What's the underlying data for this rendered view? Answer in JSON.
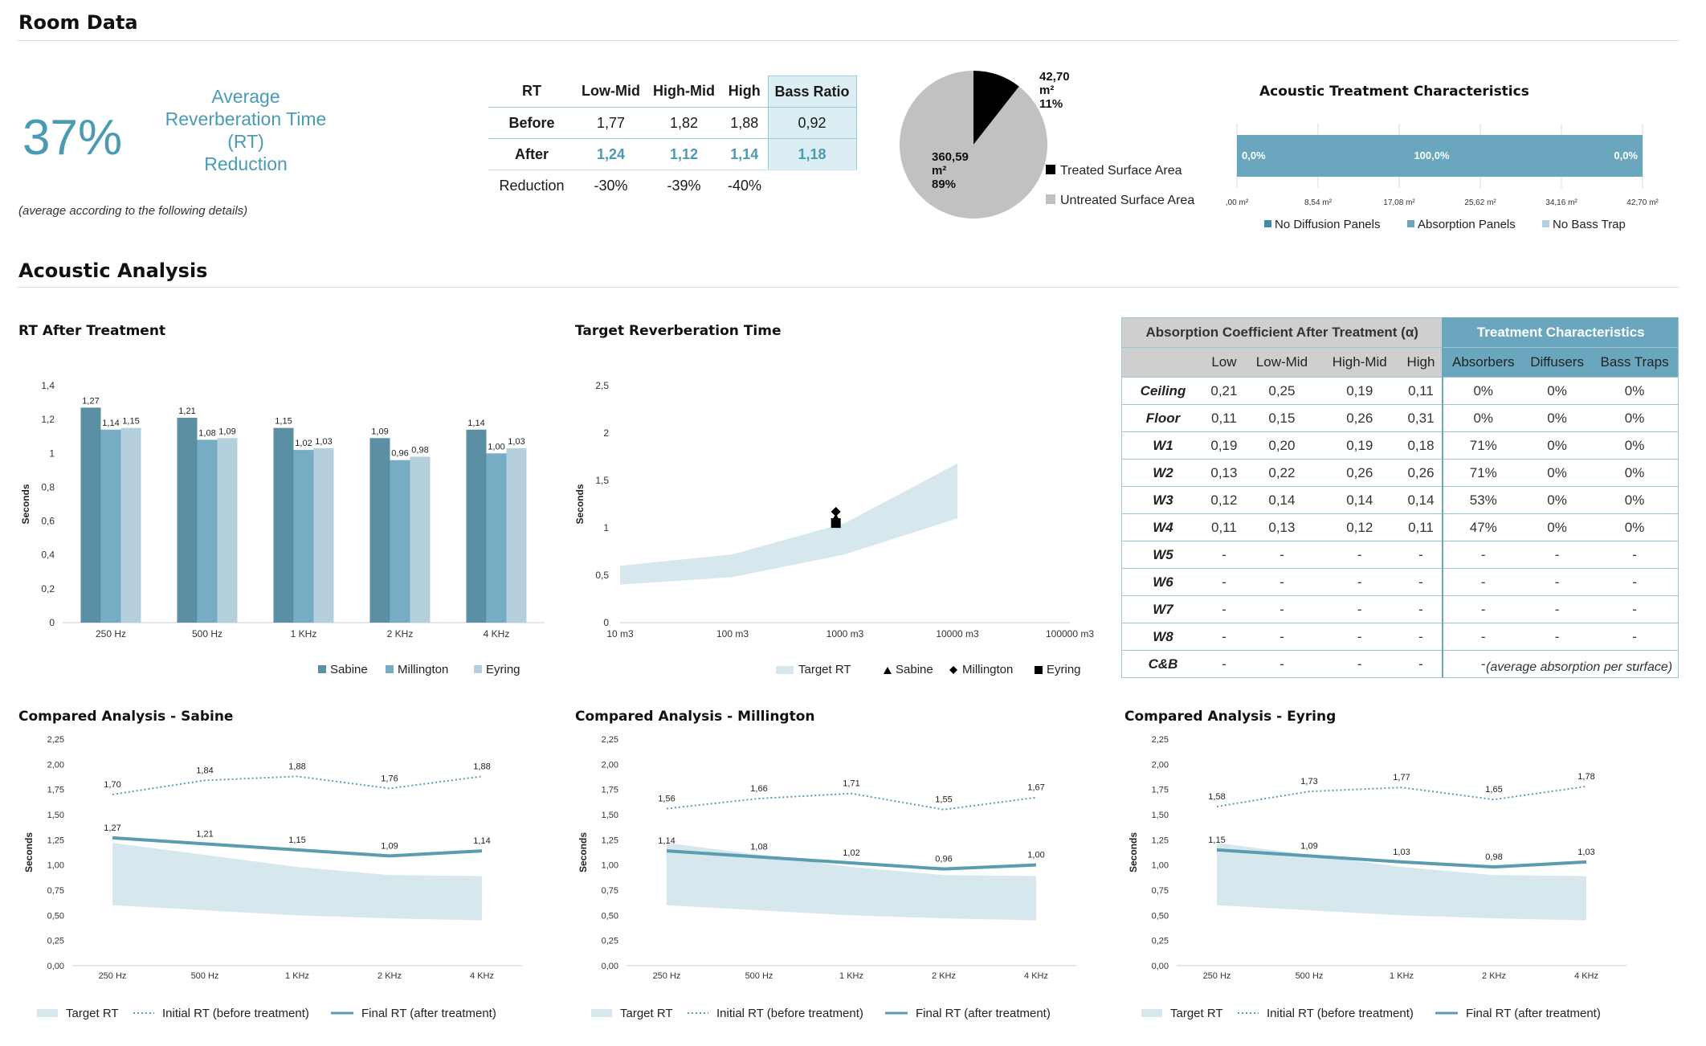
{
  "room_data": {
    "title": "Room Data",
    "percent": "37%",
    "percent_label_lines": [
      "Average",
      "Reverberation Time",
      "(RT)",
      "Reduction"
    ],
    "note": "(average according to the following details)"
  },
  "rt_table": {
    "headers": [
      "RT",
      "Low-Mid",
      "High-Mid",
      "High",
      "Bass Ratio"
    ],
    "rows": [
      {
        "label": "Before",
        "values": [
          "1,77",
          "1,82",
          "1,88",
          "0,92"
        ]
      },
      {
        "label": "After",
        "values": [
          "1,24",
          "1,12",
          "1,14",
          "1,18"
        ]
      },
      {
        "label": "Reduction",
        "values": [
          "-30%",
          "-39%",
          "-40%",
          ""
        ]
      }
    ]
  },
  "acoustic_analysis": {
    "title": "Acoustic Analysis"
  },
  "absorption_table": {
    "group_header_left": "Absorption Coefficient After Treatment (α)",
    "group_header_right": "Treatment Characteristics",
    "columns": [
      "Low",
      "Low-Mid",
      "High-Mid",
      "High",
      "Absorbers",
      "Diffusers",
      "Bass Traps"
    ],
    "rows": [
      {
        "label": "Ceiling",
        "values": [
          "0,21",
          "0,25",
          "0,19",
          "0,11",
          "0%",
          "0%",
          "0%"
        ]
      },
      {
        "label": "Floor",
        "values": [
          "0,11",
          "0,15",
          "0,26",
          "0,31",
          "0%",
          "0%",
          "0%"
        ]
      },
      {
        "label": "W1",
        "values": [
          "0,19",
          "0,20",
          "0,19",
          "0,18",
          "71%",
          "0%",
          "0%"
        ]
      },
      {
        "label": "W2",
        "values": [
          "0,13",
          "0,22",
          "0,26",
          "0,26",
          "71%",
          "0%",
          "0%"
        ]
      },
      {
        "label": "W3",
        "values": [
          "0,12",
          "0,14",
          "0,14",
          "0,14",
          "53%",
          "0%",
          "0%"
        ]
      },
      {
        "label": "W4",
        "values": [
          "0,11",
          "0,13",
          "0,12",
          "0,11",
          "47%",
          "0%",
          "0%"
        ]
      },
      {
        "label": "W5",
        "values": [
          "-",
          "-",
          "-",
          "-",
          "-",
          "-",
          "-"
        ]
      },
      {
        "label": "W6",
        "values": [
          "-",
          "-",
          "-",
          "-",
          "-",
          "-",
          "-"
        ]
      },
      {
        "label": "W7",
        "values": [
          "-",
          "-",
          "-",
          "-",
          "-",
          "-",
          "-"
        ]
      },
      {
        "label": "W8",
        "values": [
          "-",
          "-",
          "-",
          "-",
          "-",
          "-",
          "-"
        ]
      },
      {
        "label": "C&B",
        "values": [
          "-",
          "-",
          "-",
          "-",
          "-",
          "-",
          "-"
        ]
      }
    ],
    "note": "(average absorption per surface)"
  },
  "colors": {
    "sabine": "#5b8fa3",
    "millington": "#77adc4",
    "eyring": "#b3d0dc",
    "target_band": "#d6e8ee",
    "final_line": "#5c9cb1",
    "pie_untreated": "#c1c1c1",
    "pie_treated": "#000000",
    "bar_fill": "#6aa7bf"
  },
  "chart_data": [
    {
      "id": "pie",
      "type": "pie",
      "slices": [
        {
          "name": "Treated Surface Area",
          "value": 42.7,
          "label_lines": [
            "42,70",
            "m²",
            "11%"
          ],
          "color": "#000000"
        },
        {
          "name": "Untreated Surface Area",
          "value": 360.59,
          "label_lines": [
            "360,59",
            "m²",
            "89%"
          ],
          "color": "#c1c1c1"
        }
      ],
      "legend": [
        "Treated Surface Area",
        "Untreated Surface Area"
      ]
    },
    {
      "id": "treatment",
      "type": "bar",
      "title": "Acoustic Treatment Characteristics",
      "orientation": "horizontal-stacked",
      "series": [
        {
          "name": "No Diffusion Panels",
          "value": 0.0,
          "label": "0,0%",
          "color": "#3f8aa8"
        },
        {
          "name": "Absorption Panels",
          "value": 100.0,
          "label": "100,0%",
          "color": "#6aa7bf"
        },
        {
          "name": "No Bass Trap",
          "value": 0.0,
          "label": "0,0%",
          "color": "#b3d0dc"
        }
      ],
      "xticks": [
        ",00 m²",
        "8,54 m²",
        "17,08 m²",
        "25,62 m²",
        "34,16 m²",
        "42,70 m²"
      ],
      "xlim": [
        0,
        42.7
      ]
    },
    {
      "id": "rt_after",
      "type": "bar",
      "title": "RT After Treatment",
      "categories": [
        "250 Hz",
        "500 Hz",
        "1 KHz",
        "2 KHz",
        "4 KHz"
      ],
      "ylabel": "Seconds",
      "ylim": [
        0,
        1.4
      ],
      "yticks": [
        "0",
        "0,2",
        "0,4",
        "0,6",
        "0,8",
        "1",
        "1,2",
        "1,4"
      ],
      "series": [
        {
          "name": "Sabine",
          "values": [
            1.27,
            1.21,
            1.15,
            1.09,
            1.14
          ],
          "labels": [
            "1,27",
            "1,21",
            "1,15",
            "1,09",
            "1,14"
          ]
        },
        {
          "name": "Millington",
          "values": [
            1.14,
            1.08,
            1.02,
            0.96,
            1.0
          ],
          "labels": [
            "1,14",
            "1,08",
            "1,02",
            "0,96",
            "1,00"
          ]
        },
        {
          "name": "Eyring",
          "values": [
            1.15,
            1.09,
            1.03,
            0.98,
            1.03
          ],
          "labels": [
            "1,15",
            "1,09",
            "1,03",
            "0,98",
            "1,03"
          ]
        }
      ]
    },
    {
      "id": "target_rt",
      "type": "area",
      "title": "Target Reverberation Time",
      "ylabel": "Seconds",
      "xscale": "log",
      "xlim": [
        10,
        100000
      ],
      "ylim": [
        0,
        2.5
      ],
      "xticks": [
        "10 m3",
        "100 m3",
        "1000 m3",
        "10000 m3",
        "100000 m3"
      ],
      "yticks": [
        "0",
        "0,5",
        "1",
        "1,5",
        "2",
        "2,5"
      ],
      "band": {
        "x": [
          10,
          100,
          1000,
          10000
        ],
        "low": [
          0.4,
          0.48,
          0.72,
          1.1
        ],
        "high": [
          0.6,
          0.72,
          1.05,
          1.68
        ]
      },
      "points": [
        {
          "name": "Sabine",
          "x": 830,
          "y": 1.1,
          "marker": "triangle"
        },
        {
          "name": "Millington",
          "x": 830,
          "y": 1.17,
          "marker": "diamond"
        },
        {
          "name": "Eyring",
          "x": 830,
          "y": 1.05,
          "marker": "square"
        }
      ],
      "legend": [
        "Target RT",
        "Sabine",
        "Millington",
        "Eyring"
      ]
    },
    {
      "id": "cmp_sabine",
      "type": "line",
      "title": "Compared Analysis - Sabine",
      "categories": [
        "250 Hz",
        "500 Hz",
        "1 KHz",
        "2 KHz",
        "4 KHz"
      ],
      "ylabel": "Seconds",
      "ylim": [
        0,
        2.25
      ],
      "yticks": [
        "0,00",
        "0,25",
        "0,50",
        "0,75",
        "1,00",
        "1,25",
        "1,50",
        "1,75",
        "2,00",
        "2,25"
      ],
      "target_low": [
        0.6,
        0.55,
        0.5,
        0.47,
        0.45
      ],
      "target_high": [
        1.22,
        1.1,
        0.98,
        0.9,
        0.89
      ],
      "initial": [
        1.7,
        1.84,
        1.88,
        1.76,
        1.88
      ],
      "initial_labels": [
        "1,70",
        "1,84",
        "1,88",
        "1,76",
        "1,88"
      ],
      "final": [
        1.27,
        1.21,
        1.15,
        1.09,
        1.14
      ],
      "final_labels": [
        "1,27",
        "1,21",
        "1,15",
        "1,09",
        "1,14"
      ],
      "legend": [
        "Target RT",
        "Initial RT (before treatment)",
        "Final RT (after treatment)"
      ]
    },
    {
      "id": "cmp_millington",
      "type": "line",
      "title": "Compared Analysis - Millington",
      "categories": [
        "250 Hz",
        "500 Hz",
        "1 KHz",
        "2 KHz",
        "4 KHz"
      ],
      "ylabel": "Seconds",
      "ylim": [
        0,
        2.25
      ],
      "yticks": [
        "0,00",
        "0,25",
        "0,50",
        "0,75",
        "1,00",
        "1,25",
        "1,50",
        "1,75",
        "2,00",
        "2,25"
      ],
      "target_low": [
        0.6,
        0.55,
        0.5,
        0.47,
        0.45
      ],
      "target_high": [
        1.22,
        1.1,
        0.98,
        0.9,
        0.89
      ],
      "initial": [
        1.56,
        1.66,
        1.71,
        1.55,
        1.67
      ],
      "initial_labels": [
        "1,56",
        "1,66",
        "1,71",
        "1,55",
        "1,67"
      ],
      "final": [
        1.14,
        1.08,
        1.02,
        0.96,
        1.0
      ],
      "final_labels": [
        "1,14",
        "1,08",
        "1,02",
        "0,96",
        "1,00"
      ],
      "legend": [
        "Target RT",
        "Initial RT (before treatment)",
        "Final RT (after treatment)"
      ]
    },
    {
      "id": "cmp_eyring",
      "type": "line",
      "title": "Compared Analysis - Eyring",
      "categories": [
        "250 Hz",
        "500 Hz",
        "1 KHz",
        "2 KHz",
        "4 KHz"
      ],
      "ylabel": "Seconds",
      "ylim": [
        0,
        2.25
      ],
      "yticks": [
        "0,00",
        "0,25",
        "0,50",
        "0,75",
        "1,00",
        "1,25",
        "1,50",
        "1,75",
        "2,00",
        "2,25"
      ],
      "target_low": [
        0.6,
        0.55,
        0.5,
        0.47,
        0.45
      ],
      "target_high": [
        1.22,
        1.1,
        0.98,
        0.9,
        0.89
      ],
      "initial": [
        1.58,
        1.73,
        1.77,
        1.65,
        1.78
      ],
      "initial_labels": [
        "1,58",
        "1,73",
        "1,77",
        "1,65",
        "1,78"
      ],
      "final": [
        1.15,
        1.09,
        1.03,
        0.98,
        1.03
      ],
      "final_labels": [
        "1,15",
        "1,09",
        "1,03",
        "0,98",
        "1,03"
      ],
      "legend": [
        "Target RT",
        "Initial RT (before treatment)",
        "Final RT (after treatment)"
      ]
    }
  ]
}
